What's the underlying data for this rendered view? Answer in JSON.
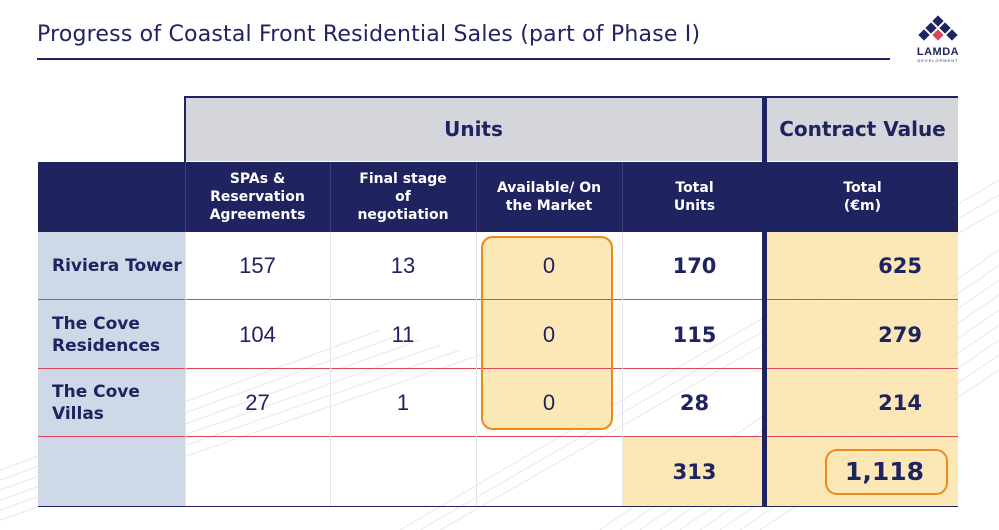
{
  "title": "Progress of Coastal Front Residential Sales (part of Phase I)",
  "logo": {
    "name": "LAMDA",
    "sub": "DEVELOPMENT"
  },
  "table": {
    "group_headers": {
      "units": "Units",
      "contract_value": "Contract Value"
    },
    "columns": [
      "SPAs & Reservation Agreements",
      "Final stage of negotiation",
      "Available/ On the Market",
      "Total Units",
      "Total (€m)"
    ],
    "rows": [
      {
        "label": "Riviera Tower",
        "spas": "157",
        "final": "13",
        "available": "0",
        "total_units": "170",
        "total_value": "625"
      },
      {
        "label": "The Cove Residences",
        "spas": "104",
        "final": "11",
        "available": "0",
        "total_units": "115",
        "total_value": "279"
      },
      {
        "label": "The Cove Villas",
        "spas": "27",
        "final": "1",
        "available": "0",
        "total_units": "28",
        "total_value": "214"
      }
    ],
    "totals": {
      "total_units": "313",
      "total_value": "1,118"
    }
  },
  "colors": {
    "navy": "#1f2360",
    "grey_header": "#d5d6dc",
    "label_blue": "#cfd8e6",
    "highlight_yellow": "#fae09e",
    "accent_orange": "#ec8a1f",
    "row_rule": "#d9475a"
  }
}
